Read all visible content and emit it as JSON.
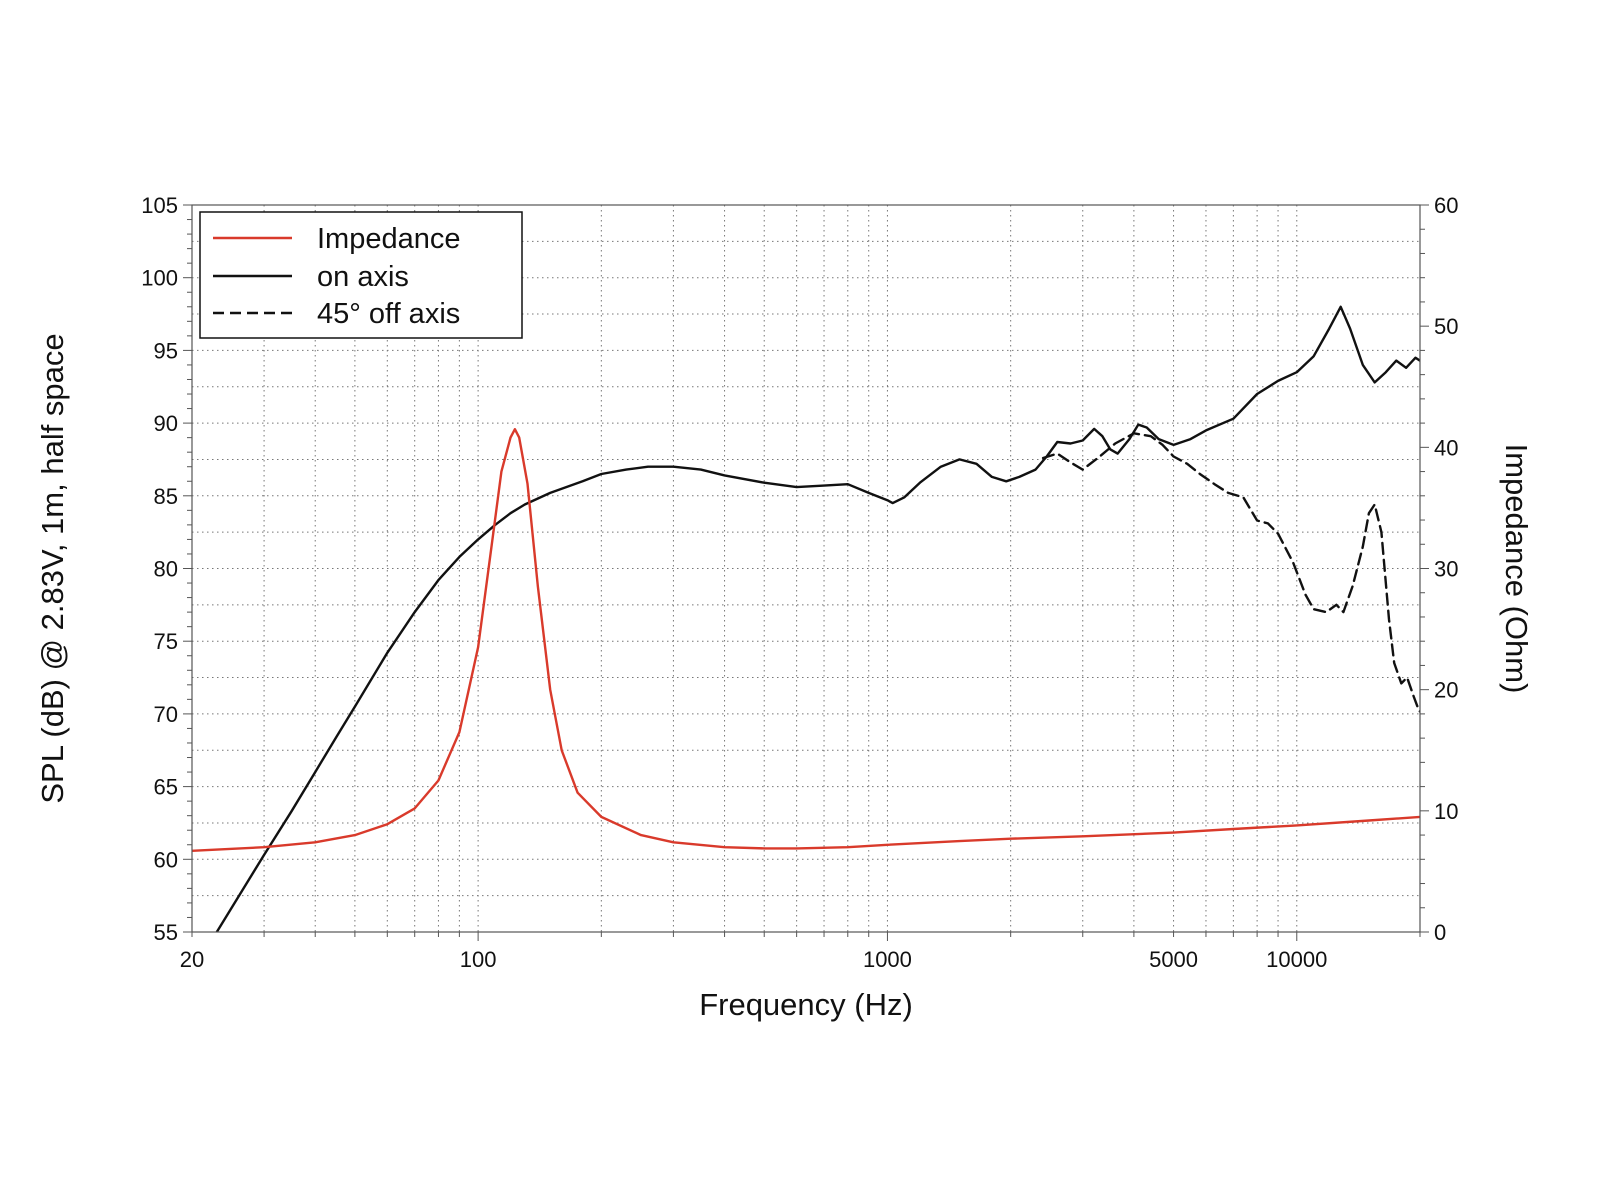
{
  "chart_data": {
    "type": "line",
    "xlabel": "Frequency (Hz)",
    "ylabel": "SPL (dB) @ 2.83V, 1m, half space",
    "y2label": "Impedance (Ohm)",
    "xscale": "log",
    "xlim": [
      20,
      20000
    ],
    "ylim": [
      55,
      105
    ],
    "y2lim": [
      0,
      60
    ],
    "xticks": [
      20,
      100,
      1000,
      5000,
      10000
    ],
    "xtick_labels": [
      "20",
      "100",
      "1000",
      "5000",
      "10000"
    ],
    "yticks": [
      55,
      60,
      65,
      70,
      75,
      80,
      85,
      90,
      95,
      100,
      105
    ],
    "y2ticks": [
      0,
      10,
      20,
      30,
      40,
      50,
      60
    ],
    "grid": true,
    "legend_position": "top-left",
    "series": [
      {
        "name": "Impedance",
        "axis": "right",
        "color": "#d93a2b",
        "style": "solid",
        "points": [
          [
            20,
            6.7
          ],
          [
            30,
            7.0
          ],
          [
            40,
            7.4
          ],
          [
            50,
            8.0
          ],
          [
            60,
            8.9
          ],
          [
            70,
            10.2
          ],
          [
            80,
            12.5
          ],
          [
            90,
            16.5
          ],
          [
            100,
            23.5
          ],
          [
            108,
            32
          ],
          [
            114,
            38
          ],
          [
            120,
            40.8
          ],
          [
            123,
            41.5
          ],
          [
            126,
            40.8
          ],
          [
            132,
            37
          ],
          [
            140,
            28.5
          ],
          [
            150,
            20
          ],
          [
            160,
            15
          ],
          [
            175,
            11.5
          ],
          [
            200,
            9.5
          ],
          [
            250,
            8.0
          ],
          [
            300,
            7.4
          ],
          [
            400,
            7.0
          ],
          [
            500,
            6.9
          ],
          [
            600,
            6.9
          ],
          [
            800,
            7.0
          ],
          [
            1000,
            7.2
          ],
          [
            1500,
            7.5
          ],
          [
            2000,
            7.7
          ],
          [
            3000,
            7.9
          ],
          [
            5000,
            8.2
          ],
          [
            7000,
            8.5
          ],
          [
            10000,
            8.8
          ],
          [
            15000,
            9.2
          ],
          [
            20000,
            9.5
          ]
        ]
      },
      {
        "name": "on axis",
        "axis": "left",
        "color": "#111111",
        "style": "solid",
        "points": [
          [
            23,
            55
          ],
          [
            27,
            58.2
          ],
          [
            30,
            60.3
          ],
          [
            35,
            63.3
          ],
          [
            40,
            66
          ],
          [
            45,
            68.4
          ],
          [
            50,
            70.5
          ],
          [
            60,
            74.2
          ],
          [
            70,
            77
          ],
          [
            80,
            79.2
          ],
          [
            90,
            80.8
          ],
          [
            100,
            82
          ],
          [
            110,
            83
          ],
          [
            120,
            83.8
          ],
          [
            130,
            84.4
          ],
          [
            150,
            85.2
          ],
          [
            180,
            86
          ],
          [
            200,
            86.5
          ],
          [
            230,
            86.8
          ],
          [
            260,
            87
          ],
          [
            300,
            87
          ],
          [
            350,
            86.8
          ],
          [
            400,
            86.4
          ],
          [
            500,
            85.9
          ],
          [
            600,
            85.6
          ],
          [
            700,
            85.7
          ],
          [
            800,
            85.8
          ],
          [
            900,
            85.2
          ],
          [
            1000,
            84.7
          ],
          [
            1030,
            84.5
          ],
          [
            1100,
            84.9
          ],
          [
            1200,
            85.9
          ],
          [
            1350,
            87
          ],
          [
            1500,
            87.5
          ],
          [
            1650,
            87.2
          ],
          [
            1800,
            86.3
          ],
          [
            1950,
            86
          ],
          [
            2100,
            86.3
          ],
          [
            2300,
            86.8
          ],
          [
            2450,
            87.7
          ],
          [
            2600,
            88.7
          ],
          [
            2800,
            88.6
          ],
          [
            3000,
            88.8
          ],
          [
            3200,
            89.6
          ],
          [
            3350,
            89.1
          ],
          [
            3500,
            88.2
          ],
          [
            3650,
            87.9
          ],
          [
            3900,
            88.9
          ],
          [
            4100,
            89.9
          ],
          [
            4300,
            89.7
          ],
          [
            4600,
            88.9
          ],
          [
            5000,
            88.5
          ],
          [
            5500,
            88.9
          ],
          [
            6000,
            89.5
          ],
          [
            7000,
            90.3
          ],
          [
            8000,
            92
          ],
          [
            9000,
            92.9
          ],
          [
            10000,
            93.5
          ],
          [
            11000,
            94.6
          ],
          [
            12000,
            96.5
          ],
          [
            12800,
            98
          ],
          [
            13500,
            96.5
          ],
          [
            14500,
            94
          ],
          [
            15500,
            92.8
          ],
          [
            16500,
            93.5
          ],
          [
            17500,
            94.3
          ],
          [
            18500,
            93.8
          ],
          [
            19500,
            94.5
          ],
          [
            20500,
            94.1
          ],
          [
            22000,
            92.5
          ],
          [
            25000,
            89.8
          ],
          [
            26500,
            89.2
          ]
        ]
      },
      {
        "name": "45° off axis",
        "axis": "left",
        "color": "#111111",
        "style": "dashed",
        "points": [
          [
            2400,
            87.6
          ],
          [
            2600,
            87.9
          ],
          [
            2800,
            87.3
          ],
          [
            3000,
            86.8
          ],
          [
            3300,
            87.7
          ],
          [
            3600,
            88.6
          ],
          [
            4000,
            89.3
          ],
          [
            4400,
            89.1
          ],
          [
            4700,
            88.5
          ],
          [
            5000,
            87.7
          ],
          [
            5400,
            87.2
          ],
          [
            5800,
            86.5
          ],
          [
            6300,
            85.8
          ],
          [
            6800,
            85.2
          ],
          [
            7400,
            84.9
          ],
          [
            8000,
            83.3
          ],
          [
            8500,
            83.1
          ],
          [
            9000,
            82.4
          ],
          [
            9800,
            80.4
          ],
          [
            10500,
            78.2
          ],
          [
            11000,
            77.2
          ],
          [
            11800,
            77
          ],
          [
            12500,
            77.5
          ],
          [
            13000,
            77
          ],
          [
            13700,
            78.8
          ],
          [
            14500,
            81.5
          ],
          [
            15000,
            83.8
          ],
          [
            15500,
            84.4
          ],
          [
            16100,
            82.5
          ],
          [
            16800,
            76.5
          ],
          [
            17300,
            73.5
          ],
          [
            18000,
            72.1
          ],
          [
            18600,
            72.5
          ],
          [
            19300,
            71.2
          ],
          [
            19900,
            70.2
          ],
          [
            20500,
            70
          ],
          [
            21100,
            70.6
          ],
          [
            21700,
            71.8
          ],
          [
            22300,
            70.9
          ],
          [
            22900,
            69.9
          ],
          [
            23700,
            69.3
          ],
          [
            24400,
            69.6
          ],
          [
            25000,
            70.3
          ],
          [
            25800,
            69.8
          ],
          [
            26500,
            69.8
          ]
        ]
      }
    ]
  }
}
